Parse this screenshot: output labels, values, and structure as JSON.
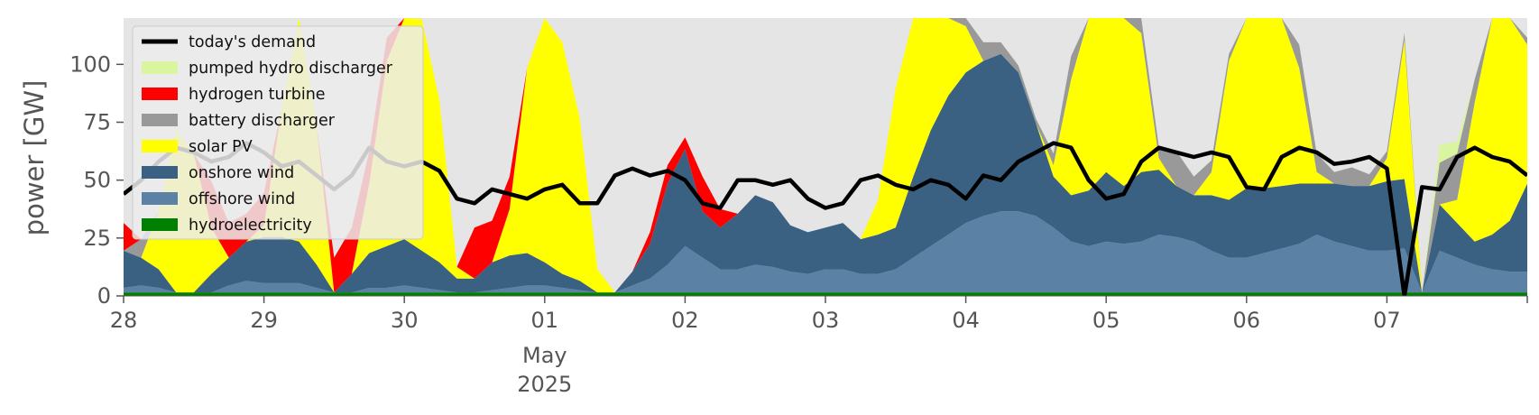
{
  "chart_data": {
    "type": "area",
    "stacked": true,
    "title": "",
    "xlabel": "",
    "ylabel": "power [GW]",
    "ylim": [
      0,
      120
    ],
    "xlim": [
      "2025-04-28T00:00",
      "2025-05-08T00:00"
    ],
    "yticks": [
      0,
      25,
      50,
      75,
      100
    ],
    "xticks": [
      {
        "x": "2025-04-28",
        "label": "28"
      },
      {
        "x": "2025-04-29",
        "label": "29"
      },
      {
        "x": "2025-04-30",
        "label": "30"
      },
      {
        "x": "2025-05-01",
        "label": "01"
      },
      {
        "x": "2025-05-02",
        "label": "02"
      },
      {
        "x": "2025-05-03",
        "label": "03"
      },
      {
        "x": "2025-05-04",
        "label": "04"
      },
      {
        "x": "2025-05-05",
        "label": "05"
      },
      {
        "x": "2025-05-06",
        "label": "06"
      },
      {
        "x": "2025-05-07",
        "label": "07"
      }
    ],
    "month_label": "May",
    "year_label": "2025",
    "grid": false,
    "background": "#e5e5e5",
    "legend_position": "upper-left",
    "sample_interval_hours": 3,
    "x_start": "2025-04-28T00:00",
    "stack_series": [
      {
        "name": "hydroelectricity",
        "color": "#008000",
        "values": [
          1.5,
          1.5,
          1.5,
          1.5,
          1.5,
          1.5,
          1.5,
          1.5,
          1.5,
          1.5,
          1.5,
          1.5,
          1.5,
          1.5,
          1.5,
          1.5,
          1.5,
          1.5,
          1.5,
          1.5,
          1.5,
          1.5,
          1.5,
          1.5,
          1.5,
          1.5,
          1.5,
          1.5,
          1.5,
          1.5,
          1.5,
          1.5,
          1.5,
          1.5,
          1.5,
          1.5,
          1.5,
          1.5,
          1.5,
          1.5,
          1.5,
          1.5,
          1.5,
          1.5,
          1.5,
          1.5,
          1.5,
          1.5,
          1.5,
          1.5,
          1.5,
          1.5,
          1.5,
          1.5,
          1.5,
          1.5,
          1.5,
          1.5,
          1.5,
          1.5,
          1.5,
          1.5,
          1.5,
          1.5,
          1.5,
          1.5,
          1.5,
          1.5,
          1.5,
          1.5,
          1.5,
          1.5,
          1.5,
          1.5,
          1.5,
          1.5,
          1.5,
          1.5,
          1.5,
          1.5,
          1.5
        ]
      },
      {
        "name": "offshore wind",
        "color": "#5b81a5",
        "values": [
          2,
          3,
          2,
          0,
          0,
          0,
          3,
          5,
          4,
          4,
          4,
          2,
          0,
          0,
          2,
          2,
          3,
          2,
          1,
          0,
          0,
          1,
          2,
          3,
          3,
          2,
          1,
          0,
          0,
          3,
          6,
          12,
          20,
          15,
          10,
          10,
          12,
          11,
          9,
          8,
          10,
          10,
          8,
          8,
          10,
          15,
          20,
          25,
          30,
          33,
          35,
          35,
          33,
          28,
          22,
          20,
          22,
          21,
          22,
          25,
          24,
          22,
          18,
          15,
          15,
          17,
          19,
          21,
          25,
          22,
          20,
          18,
          18,
          19,
          0,
          18,
          15,
          12,
          10,
          9,
          9
        ]
      },
      {
        "name": "onshore wind",
        "color": "#3b6182",
        "values": [
          16,
          12,
          8,
          0,
          0,
          8,
          12,
          17,
          20,
          20,
          18,
          10,
          0,
          8,
          15,
          18,
          20,
          16,
          12,
          6,
          6,
          12,
          14,
          14,
          10,
          6,
          4,
          0,
          0,
          6,
          15,
          35,
          42,
          20,
          18,
          24,
          30,
          28,
          20,
          18,
          18,
          20,
          15,
          17,
          18,
          35,
          50,
          60,
          65,
          67,
          68,
          60,
          40,
          22,
          20,
          24,
          30,
          25,
          30,
          28,
          22,
          20,
          24,
          25,
          30,
          28,
          27,
          26,
          22,
          25,
          26,
          28,
          30,
          30,
          0,
          20,
          15,
          10,
          15,
          22,
          38
        ]
      },
      {
        "name": "solar PV",
        "color": "#ffff00",
        "values": [
          0,
          0,
          25,
          70,
          60,
          20,
          0,
          0,
          5,
          55,
          100,
          60,
          0,
          0,
          30,
          80,
          110,
          100,
          70,
          5,
          0,
          0,
          20,
          80,
          110,
          100,
          70,
          10,
          0,
          0,
          0,
          0,
          0,
          0,
          0,
          0,
          0,
          0,
          0,
          0,
          0,
          0,
          0,
          15,
          60,
          110,
          120,
          80,
          20,
          0,
          0,
          0,
          0,
          5,
          50,
          90,
          120,
          110,
          60,
          5,
          0,
          0,
          10,
          60,
          110,
          120,
          100,
          50,
          5,
          0,
          0,
          0,
          10,
          60,
          0,
          0,
          10,
          60,
          100,
          110,
          60
        ]
      },
      {
        "name": "battery discharger",
        "color": "#999999",
        "values": [
          0,
          8,
          0,
          0,
          0,
          0,
          0,
          0,
          0,
          0,
          0,
          0,
          0,
          0,
          0,
          0,
          0,
          0,
          0,
          0,
          0,
          0,
          0,
          0,
          0,
          0,
          0,
          0,
          0,
          0,
          0,
          0,
          0,
          0,
          0,
          0,
          0,
          0,
          0,
          0,
          0,
          0,
          0,
          0,
          0,
          0,
          0,
          5,
          10,
          8,
          5,
          3,
          2,
          5,
          10,
          8,
          5,
          5,
          8,
          5,
          15,
          8,
          5,
          3,
          3,
          2,
          5,
          10,
          8,
          5,
          8,
          5,
          3,
          3,
          0,
          18,
          20,
          10,
          5,
          3,
          3
        ]
      },
      {
        "name": "hydrogen turbine",
        "color": "#ff0000",
        "values": [
          12,
          0,
          0,
          0,
          0,
          20,
          15,
          12,
          14,
          0,
          0,
          0,
          15,
          20,
          14,
          10,
          0,
          0,
          0,
          0,
          22,
          18,
          14,
          0,
          0,
          0,
          0,
          0,
          0,
          0,
          5,
          8,
          5,
          15,
          8,
          0,
          0,
          0,
          0,
          0,
          0,
          0,
          0,
          0,
          0,
          0,
          0,
          0,
          0,
          0,
          0,
          0,
          0,
          0,
          0,
          0,
          0,
          0,
          0,
          0,
          0,
          0,
          0,
          0,
          0,
          0,
          0,
          0,
          0,
          0,
          0,
          0,
          0,
          0,
          0,
          0,
          0,
          0,
          0,
          0,
          0
        ]
      },
      {
        "name": "pumped hydro discharger",
        "color": "#d9f5a0",
        "values": [
          0,
          0,
          0,
          0,
          0,
          0,
          0,
          0,
          0,
          0,
          0,
          0,
          0,
          0,
          0,
          0,
          0,
          0,
          0,
          0,
          0,
          0,
          0,
          0,
          0,
          0,
          0,
          0,
          0,
          0,
          0,
          0,
          0,
          0,
          0,
          0,
          0,
          0,
          0,
          0,
          0,
          0,
          0,
          0,
          0,
          0,
          0,
          0,
          0,
          0,
          0,
          0,
          0,
          0,
          0,
          0,
          0,
          0,
          0,
          0,
          0,
          0,
          0,
          0,
          0,
          0,
          0,
          0,
          0,
          0,
          0,
          0,
          0,
          0,
          0,
          8,
          5,
          0,
          0,
          0,
          0
        ]
      }
    ],
    "line_series": [
      {
        "name": "today's demand",
        "color": "#000000",
        "values": [
          44,
          50,
          58,
          64,
          62,
          58,
          60,
          66,
          62,
          56,
          58,
          52,
          46,
          52,
          64,
          58,
          56,
          58,
          54,
          42,
          40,
          46,
          44,
          42,
          46,
          48,
          40,
          40,
          52,
          55,
          52,
          54,
          50,
          40,
          38,
          50,
          50,
          48,
          50,
          42,
          38,
          40,
          50,
          52,
          48,
          46,
          50,
          48,
          42,
          52,
          50,
          58,
          62,
          66,
          64,
          50,
          42,
          44,
          58,
          64,
          62,
          60,
          62,
          60,
          47,
          46,
          60,
          64,
          62,
          57,
          58,
          60,
          55,
          0,
          47,
          46,
          60,
          64,
          60,
          58,
          52
        ]
      }
    ],
    "legend": [
      {
        "label": "today's demand",
        "color": "#000000",
        "kind": "line"
      },
      {
        "label": "pumped hydro discharger",
        "color": "#d9f5a0",
        "kind": "patch"
      },
      {
        "label": "hydrogen turbine",
        "color": "#ff0000",
        "kind": "patch"
      },
      {
        "label": "battery discharger",
        "color": "#999999",
        "kind": "patch"
      },
      {
        "label": "solar PV",
        "color": "#ffff00",
        "kind": "patch"
      },
      {
        "label": "onshore wind",
        "color": "#3b6182",
        "kind": "patch"
      },
      {
        "label": "offshore wind",
        "color": "#5b81a5",
        "kind": "patch"
      },
      {
        "label": "hydroelectricity",
        "color": "#008000",
        "kind": "patch"
      }
    ]
  }
}
